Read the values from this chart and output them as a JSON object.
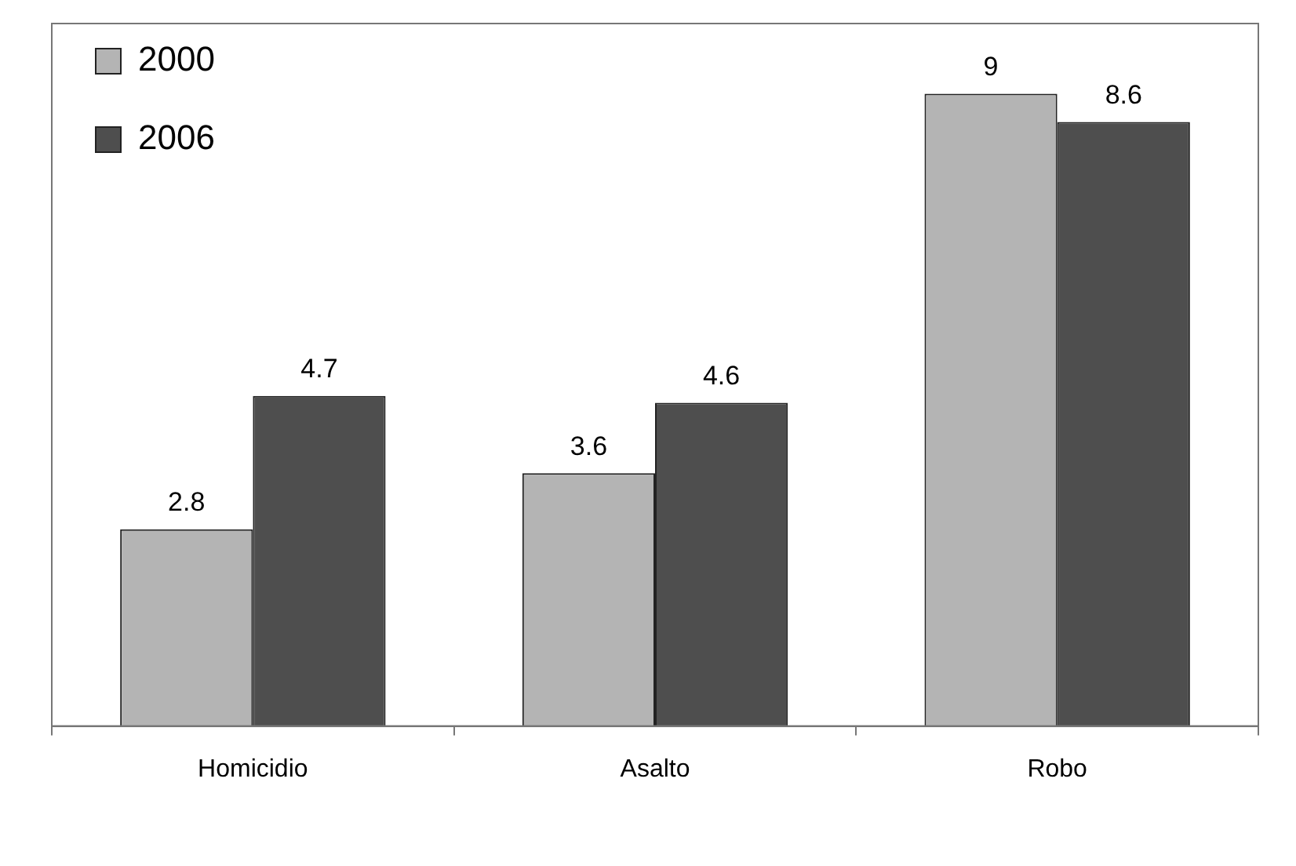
{
  "chart_data": {
    "type": "bar",
    "categories": [
      "Homicidio",
      "Asalto",
      "Robo"
    ],
    "series": [
      {
        "name": "2000",
        "color": "#b4b4b4",
        "values": [
          2.8,
          3.6,
          9
        ]
      },
      {
        "name": "2006",
        "color": "#4e4e4e",
        "values": [
          4.7,
          4.6,
          8.6
        ]
      }
    ],
    "data_labels": true,
    "legend": "top left",
    "grid": false,
    "tick_labels": "x"
  }
}
